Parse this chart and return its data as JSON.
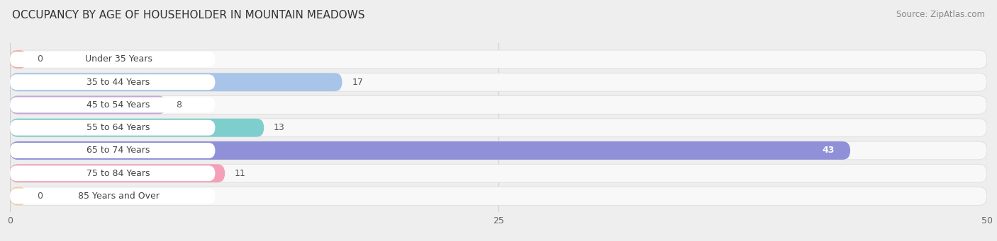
{
  "title": "OCCUPANCY BY AGE OF HOUSEHOLDER IN MOUNTAIN MEADOWS",
  "source": "Source: ZipAtlas.com",
  "categories": [
    "Under 35 Years",
    "35 to 44 Years",
    "45 to 54 Years",
    "55 to 64 Years",
    "65 to 74 Years",
    "75 to 84 Years",
    "85 Years and Over"
  ],
  "values": [
    0,
    17,
    8,
    13,
    43,
    11,
    0
  ],
  "bar_colors": [
    "#f4a8a0",
    "#a8c4e8",
    "#c4a8d4",
    "#7ecece",
    "#9090d8",
    "#f4a0b8",
    "#f0d0a0"
  ],
  "dot_colors": [
    "#f07070",
    "#6090d0",
    "#9070b0",
    "#40b0b0",
    "#6060c0",
    "#f06090",
    "#e0a060"
  ],
  "xlim_max": 50,
  "xticks": [
    0,
    25,
    50
  ],
  "bg_color": "#eeeeee",
  "bar_bg_color": "#f8f8f8",
  "bar_border_color": "#dddddd",
  "title_fontsize": 11,
  "label_fontsize": 9,
  "value_fontsize": 9,
  "source_fontsize": 8.5
}
